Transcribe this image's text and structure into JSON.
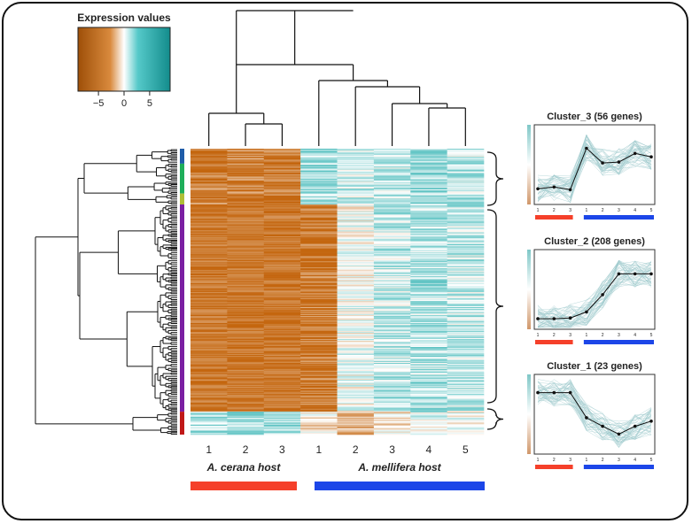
{
  "chart_data": {
    "type": "heatmap",
    "legend": {
      "title": "Expression values",
      "ticks": [
        "−5",
        "0",
        "5"
      ],
      "range": [
        -9,
        9
      ],
      "colors": {
        "low": "#c4660f",
        "mid": "#ffffff",
        "high": "#18a9a9"
      }
    },
    "columns": [
      "1",
      "2",
      "3",
      "1",
      "2",
      "3",
      "4",
      "5"
    ],
    "groups": [
      {
        "name": "A. cerana host",
        "color": "#f5402a",
        "columns": 3
      },
      {
        "name": "A. mellifera host",
        "color": "#1c46e8",
        "columns": 5
      }
    ],
    "row_clusters": [
      {
        "color": "#1f5ca8",
        "rows": 15
      },
      {
        "color": "#1fae5a",
        "rows": 30
      },
      {
        "color": "#b0bf36",
        "rows": 11
      },
      {
        "color": "#7b1fa2",
        "rows": 208
      },
      {
        "color": "#c01818",
        "rows": 23
      }
    ],
    "row_profiles": [
      {
        "name": "cluster-3",
        "mean": [
          -7,
          -6.5,
          -7,
          3,
          1.5,
          2,
          3.5,
          2
        ]
      },
      {
        "name": "cluster-2",
        "mean": [
          -7.5,
          -7.5,
          -7.5,
          -7,
          0,
          2,
          2.5,
          2
        ]
      },
      {
        "name": "cluster-1",
        "mean": [
          3,
          3,
          3,
          -1,
          -4,
          -1.5,
          0.5,
          -0.5
        ]
      }
    ],
    "cluster_panels": [
      {
        "title": "Cluster_3 (56 genes)",
        "x_ticks": [
          "1",
          "2",
          "3",
          "1",
          "2",
          "3",
          "4",
          "5"
        ],
        "mean": [
          -2.8,
          -2.6,
          -2.9,
          1.9,
          0.2,
          0.3,
          1.3,
          0.9
        ]
      },
      {
        "title": "Cluster_2 (208 genes)",
        "x_ticks": [
          "1",
          "2",
          "3",
          "1",
          "2",
          "3",
          "4",
          "5"
        ],
        "mean": [
          -3.4,
          -3.4,
          -3.3,
          -2.6,
          -0.6,
          1.8,
          1.8,
          1.8
        ]
      },
      {
        "title": "Cluster_1 (23 genes)",
        "x_ticks": [
          "1",
          "2",
          "3",
          "1",
          "2",
          "3",
          "4",
          "5"
        ],
        "mean": [
          2.5,
          2.5,
          2.5,
          -0.4,
          -1.4,
          -2.3,
          -1.4,
          -0.8
        ]
      }
    ]
  }
}
